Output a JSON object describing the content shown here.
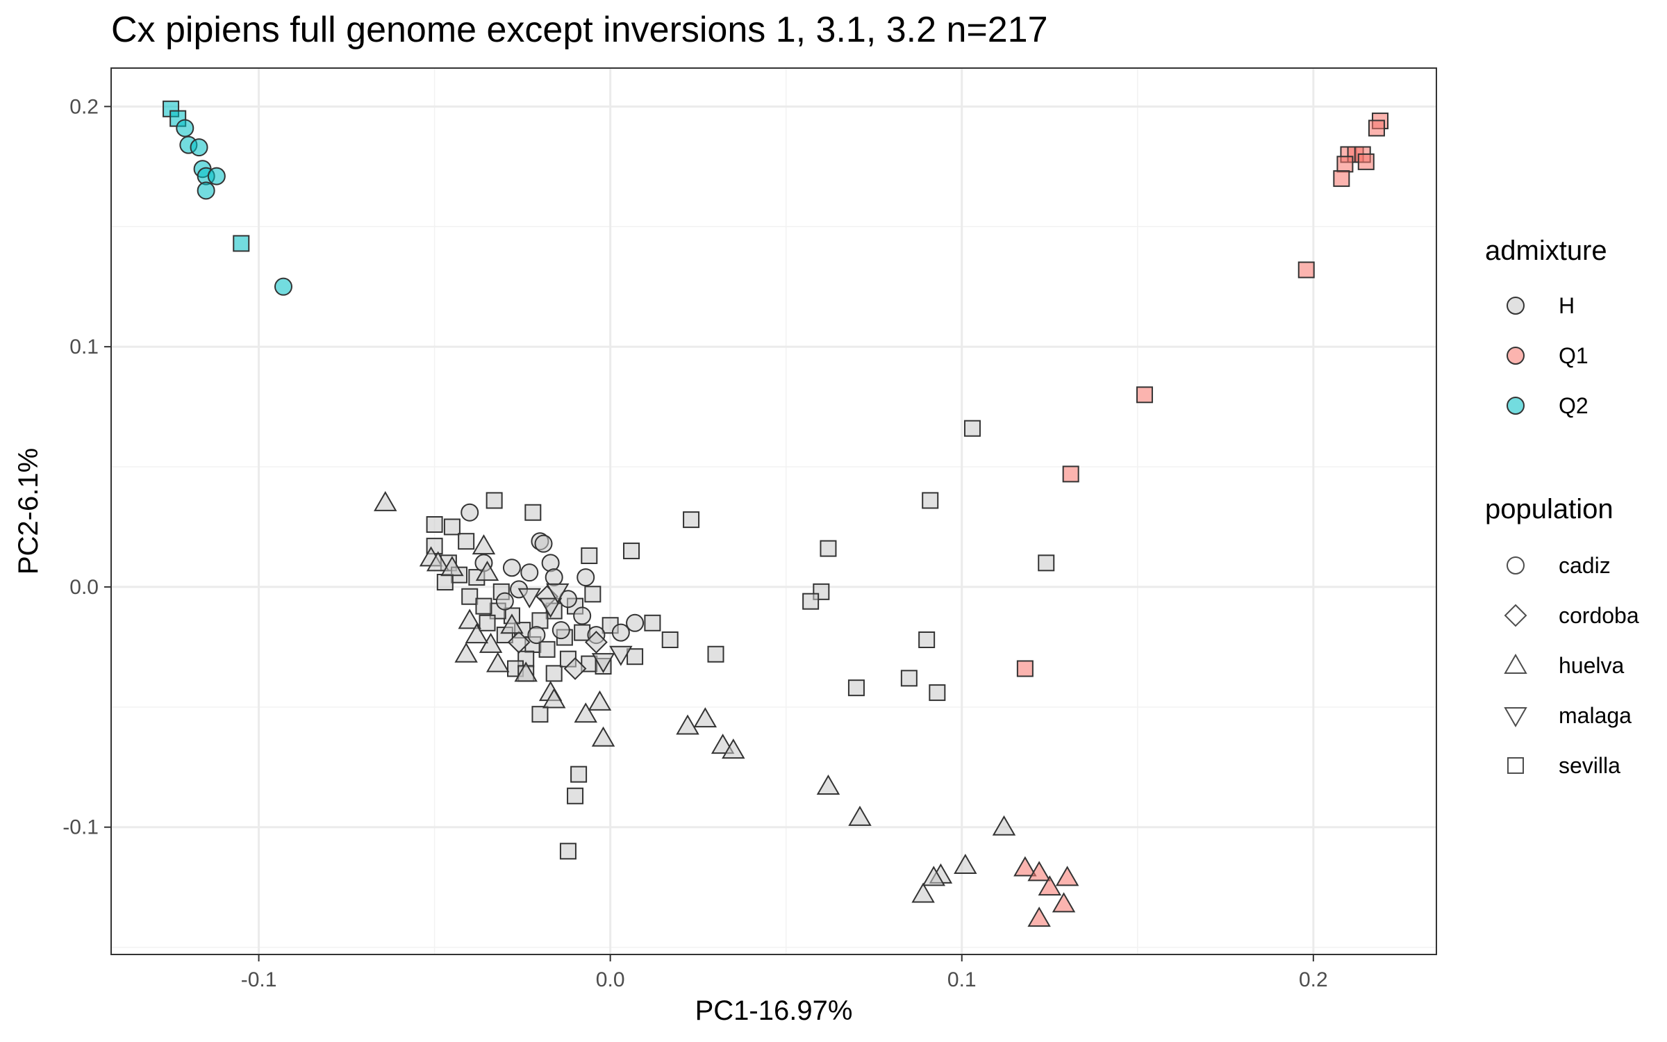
{
  "chart_data": {
    "type": "scatter",
    "title": "Cx pipiens full genome except inversions 1, 3.1, 3.2 n=217",
    "xlabel": "PC1-16.97%",
    "ylabel": "PC2-6.1%",
    "xlim": [
      -0.142,
      0.235
    ],
    "ylim": [
      -0.153,
      0.216
    ],
    "x_ticks": [
      -0.1,
      0.0,
      0.1,
      0.2
    ],
    "x_tick_labels": [
      "-0.1",
      "0.0",
      "0.1",
      "0.2"
    ],
    "y_ticks": [
      -0.1,
      0.0,
      0.1,
      0.2
    ],
    "y_tick_labels": [
      "-0.1",
      "0.0",
      "0.1",
      "0.2"
    ],
    "grid": true,
    "legend_position": "right",
    "colors": {
      "H": "#c8c8c8",
      "Q1": "#f8766d",
      "Q2": "#00bfc4"
    },
    "legend_admixture": {
      "title": "admixture",
      "items": [
        "H",
        "Q1",
        "Q2"
      ]
    },
    "legend_population": {
      "title": "population",
      "items": [
        "cadiz",
        "cordoba",
        "huelva",
        "malaga",
        "sevilla"
      ]
    },
    "points": [
      {
        "x": -0.125,
        "y": 0.199,
        "admixture": "Q2",
        "population": "sevilla"
      },
      {
        "x": -0.123,
        "y": 0.195,
        "admixture": "Q2",
        "population": "sevilla"
      },
      {
        "x": -0.121,
        "y": 0.191,
        "admixture": "Q2",
        "population": "cadiz"
      },
      {
        "x": -0.12,
        "y": 0.184,
        "admixture": "Q2",
        "population": "cadiz"
      },
      {
        "x": -0.117,
        "y": 0.183,
        "admixture": "Q2",
        "population": "cadiz"
      },
      {
        "x": -0.116,
        "y": 0.174,
        "admixture": "Q2",
        "population": "cadiz"
      },
      {
        "x": -0.115,
        "y": 0.171,
        "admixture": "Q2",
        "population": "cadiz"
      },
      {
        "x": -0.112,
        "y": 0.171,
        "admixture": "Q2",
        "population": "cadiz"
      },
      {
        "x": -0.115,
        "y": 0.165,
        "admixture": "Q2",
        "population": "cadiz"
      },
      {
        "x": -0.105,
        "y": 0.143,
        "admixture": "Q2",
        "population": "sevilla"
      },
      {
        "x": -0.093,
        "y": 0.125,
        "admixture": "Q2",
        "population": "cadiz"
      },
      {
        "x": 0.219,
        "y": 0.194,
        "admixture": "Q1",
        "population": "sevilla"
      },
      {
        "x": 0.218,
        "y": 0.191,
        "admixture": "Q1",
        "population": "sevilla"
      },
      {
        "x": 0.21,
        "y": 0.18,
        "admixture": "Q1",
        "population": "sevilla"
      },
      {
        "x": 0.212,
        "y": 0.18,
        "admixture": "Q1",
        "population": "sevilla"
      },
      {
        "x": 0.214,
        "y": 0.18,
        "admixture": "Q1",
        "population": "sevilla"
      },
      {
        "x": 0.209,
        "y": 0.176,
        "admixture": "Q1",
        "population": "sevilla"
      },
      {
        "x": 0.215,
        "y": 0.177,
        "admixture": "Q1",
        "population": "sevilla"
      },
      {
        "x": 0.208,
        "y": 0.17,
        "admixture": "Q1",
        "population": "sevilla"
      },
      {
        "x": 0.198,
        "y": 0.132,
        "admixture": "Q1",
        "population": "sevilla"
      },
      {
        "x": 0.152,
        "y": 0.08,
        "admixture": "Q1",
        "population": "sevilla"
      },
      {
        "x": 0.131,
        "y": 0.047,
        "admixture": "Q1",
        "population": "sevilla"
      },
      {
        "x": 0.118,
        "y": -0.034,
        "admixture": "Q1",
        "population": "sevilla"
      },
      {
        "x": 0.118,
        "y": -0.117,
        "admixture": "Q1",
        "population": "huelva"
      },
      {
        "x": 0.122,
        "y": -0.119,
        "admixture": "Q1",
        "population": "huelva"
      },
      {
        "x": 0.125,
        "y": -0.125,
        "admixture": "Q1",
        "population": "huelva"
      },
      {
        "x": 0.13,
        "y": -0.121,
        "admixture": "Q1",
        "population": "huelva"
      },
      {
        "x": 0.129,
        "y": -0.132,
        "admixture": "Q1",
        "population": "huelva"
      },
      {
        "x": 0.122,
        "y": -0.138,
        "admixture": "Q1",
        "population": "huelva"
      },
      {
        "x": 0.103,
        "y": 0.066,
        "admixture": "H",
        "population": "sevilla"
      },
      {
        "x": 0.091,
        "y": 0.036,
        "admixture": "H",
        "population": "sevilla"
      },
      {
        "x": 0.124,
        "y": 0.01,
        "admixture": "H",
        "population": "sevilla"
      },
      {
        "x": 0.062,
        "y": 0.016,
        "admixture": "H",
        "population": "sevilla"
      },
      {
        "x": 0.06,
        "y": -0.002,
        "admixture": "H",
        "population": "sevilla"
      },
      {
        "x": 0.057,
        "y": -0.006,
        "admixture": "H",
        "population": "sevilla"
      },
      {
        "x": 0.09,
        "y": -0.022,
        "admixture": "H",
        "population": "sevilla"
      },
      {
        "x": 0.085,
        "y": -0.038,
        "admixture": "H",
        "population": "sevilla"
      },
      {
        "x": 0.093,
        "y": -0.044,
        "admixture": "H",
        "population": "sevilla"
      },
      {
        "x": 0.07,
        "y": -0.042,
        "admixture": "H",
        "population": "sevilla"
      },
      {
        "x": 0.023,
        "y": 0.028,
        "admixture": "H",
        "population": "sevilla"
      },
      {
        "x": 0.006,
        "y": 0.015,
        "admixture": "H",
        "population": "sevilla"
      },
      {
        "x": 0.012,
        "y": -0.015,
        "admixture": "H",
        "population": "sevilla"
      },
      {
        "x": 0.017,
        "y": -0.022,
        "admixture": "H",
        "population": "sevilla"
      },
      {
        "x": 0.03,
        "y": -0.028,
        "admixture": "H",
        "population": "sevilla"
      },
      {
        "x": 0.007,
        "y": -0.029,
        "admixture": "H",
        "population": "sevilla"
      },
      {
        "x": -0.009,
        "y": -0.078,
        "admixture": "H",
        "population": "sevilla"
      },
      {
        "x": -0.01,
        "y": -0.087,
        "admixture": "H",
        "population": "sevilla"
      },
      {
        "x": -0.012,
        "y": -0.11,
        "admixture": "H",
        "population": "sevilla"
      },
      {
        "x": -0.02,
        "y": -0.053,
        "admixture": "H",
        "population": "sevilla"
      },
      {
        "x": -0.022,
        "y": 0.031,
        "admixture": "H",
        "population": "sevilla"
      },
      {
        "x": -0.033,
        "y": 0.036,
        "admixture": "H",
        "population": "sevilla"
      },
      {
        "x": -0.05,
        "y": 0.026,
        "admixture": "H",
        "population": "sevilla"
      },
      {
        "x": -0.045,
        "y": 0.025,
        "admixture": "H",
        "population": "sevilla"
      },
      {
        "x": -0.05,
        "y": 0.017,
        "admixture": "H",
        "population": "sevilla"
      },
      {
        "x": -0.041,
        "y": 0.019,
        "admixture": "H",
        "population": "sevilla"
      },
      {
        "x": -0.046,
        "y": 0.01,
        "admixture": "H",
        "population": "sevilla"
      },
      {
        "x": -0.043,
        "y": 0.005,
        "admixture": "H",
        "population": "sevilla"
      },
      {
        "x": -0.047,
        "y": 0.002,
        "admixture": "H",
        "population": "sevilla"
      },
      {
        "x": -0.006,
        "y": 0.013,
        "admixture": "H",
        "population": "sevilla"
      },
      {
        "x": -0.005,
        "y": -0.003,
        "admixture": "H",
        "population": "sevilla"
      },
      {
        "x": -0.01,
        "y": -0.008,
        "admixture": "H",
        "population": "sevilla"
      },
      {
        "x": -0.016,
        "y": -0.01,
        "admixture": "H",
        "population": "sevilla"
      },
      {
        "x": -0.02,
        "y": -0.014,
        "admixture": "H",
        "population": "sevilla"
      },
      {
        "x": -0.025,
        "y": -0.018,
        "admixture": "H",
        "population": "sevilla"
      },
      {
        "x": -0.028,
        "y": -0.012,
        "admixture": "H",
        "population": "sevilla"
      },
      {
        "x": -0.032,
        "y": -0.01,
        "admixture": "H",
        "population": "sevilla"
      },
      {
        "x": -0.035,
        "y": -0.015,
        "admixture": "H",
        "population": "sevilla"
      },
      {
        "x": -0.03,
        "y": -0.02,
        "admixture": "H",
        "population": "sevilla"
      },
      {
        "x": -0.022,
        "y": -0.024,
        "admixture": "H",
        "population": "sevilla"
      },
      {
        "x": -0.018,
        "y": -0.026,
        "admixture": "H",
        "population": "sevilla"
      },
      {
        "x": -0.024,
        "y": -0.03,
        "admixture": "H",
        "population": "sevilla"
      },
      {
        "x": -0.027,
        "y": -0.034,
        "admixture": "H",
        "population": "sevilla"
      },
      {
        "x": -0.024,
        "y": -0.036,
        "admixture": "H",
        "population": "sevilla"
      },
      {
        "x": -0.016,
        "y": -0.036,
        "admixture": "H",
        "population": "sevilla"
      },
      {
        "x": -0.012,
        "y": -0.03,
        "admixture": "H",
        "population": "sevilla"
      },
      {
        "x": -0.006,
        "y": -0.032,
        "admixture": "H",
        "population": "sevilla"
      },
      {
        "x": -0.002,
        "y": -0.033,
        "admixture": "H",
        "population": "sevilla"
      },
      {
        "x": 0.0,
        "y": -0.016,
        "admixture": "H",
        "population": "sevilla"
      },
      {
        "x": -0.038,
        "y": 0.004,
        "admixture": "H",
        "population": "sevilla"
      },
      {
        "x": -0.04,
        "y": -0.004,
        "admixture": "H",
        "population": "sevilla"
      },
      {
        "x": -0.036,
        "y": -0.008,
        "admixture": "H",
        "population": "sevilla"
      },
      {
        "x": -0.031,
        "y": -0.002,
        "admixture": "H",
        "population": "sevilla"
      },
      {
        "x": -0.013,
        "y": -0.021,
        "admixture": "H",
        "population": "sevilla"
      },
      {
        "x": -0.008,
        "y": -0.019,
        "admixture": "H",
        "population": "sevilla"
      },
      {
        "x": -0.04,
        "y": 0.031,
        "admixture": "H",
        "population": "cadiz"
      },
      {
        "x": -0.02,
        "y": 0.019,
        "admixture": "H",
        "population": "cadiz"
      },
      {
        "x": -0.019,
        "y": 0.018,
        "admixture": "H",
        "population": "cadiz"
      },
      {
        "x": -0.017,
        "y": 0.01,
        "admixture": "H",
        "population": "cadiz"
      },
      {
        "x": -0.028,
        "y": 0.008,
        "admixture": "H",
        "population": "cadiz"
      },
      {
        "x": -0.023,
        "y": 0.006,
        "admixture": "H",
        "population": "cadiz"
      },
      {
        "x": -0.007,
        "y": 0.004,
        "admixture": "H",
        "population": "cadiz"
      },
      {
        "x": -0.016,
        "y": 0.004,
        "admixture": "H",
        "population": "cadiz"
      },
      {
        "x": -0.036,
        "y": 0.01,
        "admixture": "H",
        "population": "cadiz"
      },
      {
        "x": -0.026,
        "y": -0.001,
        "admixture": "H",
        "population": "cadiz"
      },
      {
        "x": -0.012,
        "y": -0.005,
        "admixture": "H",
        "population": "cadiz"
      },
      {
        "x": -0.008,
        "y": -0.012,
        "admixture": "H",
        "population": "cadiz"
      },
      {
        "x": -0.004,
        "y": -0.02,
        "admixture": "H",
        "population": "cadiz"
      },
      {
        "x": 0.003,
        "y": -0.019,
        "admixture": "H",
        "population": "cadiz"
      },
      {
        "x": 0.007,
        "y": -0.015,
        "admixture": "H",
        "population": "cadiz"
      },
      {
        "x": -0.014,
        "y": -0.018,
        "admixture": "H",
        "population": "cadiz"
      },
      {
        "x": -0.021,
        "y": -0.02,
        "admixture": "H",
        "population": "cadiz"
      },
      {
        "x": -0.03,
        "y": -0.006,
        "admixture": "H",
        "population": "cadiz"
      },
      {
        "x": -0.01,
        "y": -0.034,
        "admixture": "H",
        "population": "cordoba"
      },
      {
        "x": -0.018,
        "y": -0.004,
        "admixture": "H",
        "population": "cordoba"
      },
      {
        "x": -0.004,
        "y": -0.023,
        "admixture": "H",
        "population": "cordoba"
      },
      {
        "x": -0.026,
        "y": -0.023,
        "admixture": "H",
        "population": "cordoba"
      },
      {
        "x": -0.023,
        "y": -0.004,
        "admixture": "H",
        "population": "malaga"
      },
      {
        "x": -0.017,
        "y": -0.008,
        "admixture": "H",
        "population": "malaga"
      },
      {
        "x": 0.003,
        "y": -0.028,
        "admixture": "H",
        "population": "malaga"
      },
      {
        "x": -0.002,
        "y": -0.031,
        "admixture": "H",
        "population": "malaga"
      },
      {
        "x": -0.015,
        "y": -0.002,
        "admixture": "H",
        "population": "malaga"
      },
      {
        "x": -0.064,
        "y": 0.035,
        "admixture": "H",
        "population": "huelva"
      },
      {
        "x": -0.051,
        "y": 0.012,
        "admixture": "H",
        "population": "huelva"
      },
      {
        "x": -0.049,
        "y": 0.01,
        "admixture": "H",
        "population": "huelva"
      },
      {
        "x": -0.045,
        "y": 0.008,
        "admixture": "H",
        "population": "huelva"
      },
      {
        "x": -0.036,
        "y": 0.017,
        "admixture": "H",
        "population": "huelva"
      },
      {
        "x": -0.035,
        "y": 0.006,
        "admixture": "H",
        "population": "huelva"
      },
      {
        "x": -0.04,
        "y": -0.014,
        "admixture": "H",
        "population": "huelva"
      },
      {
        "x": -0.041,
        "y": -0.028,
        "admixture": "H",
        "population": "huelva"
      },
      {
        "x": -0.034,
        "y": -0.024,
        "admixture": "H",
        "population": "huelva"
      },
      {
        "x": -0.032,
        "y": -0.032,
        "admixture": "H",
        "population": "huelva"
      },
      {
        "x": -0.024,
        "y": -0.036,
        "admixture": "H",
        "population": "huelva"
      },
      {
        "x": -0.017,
        "y": -0.044,
        "admixture": "H",
        "population": "huelva"
      },
      {
        "x": -0.016,
        "y": -0.047,
        "admixture": "H",
        "population": "huelva"
      },
      {
        "x": -0.007,
        "y": -0.053,
        "admixture": "H",
        "population": "huelva"
      },
      {
        "x": -0.003,
        "y": -0.048,
        "admixture": "H",
        "population": "huelva"
      },
      {
        "x": -0.002,
        "y": -0.063,
        "admixture": "H",
        "population": "huelva"
      },
      {
        "x": 0.022,
        "y": -0.058,
        "admixture": "H",
        "population": "huelva"
      },
      {
        "x": 0.027,
        "y": -0.055,
        "admixture": "H",
        "population": "huelva"
      },
      {
        "x": 0.032,
        "y": -0.066,
        "admixture": "H",
        "population": "huelva"
      },
      {
        "x": 0.035,
        "y": -0.068,
        "admixture": "H",
        "population": "huelva"
      },
      {
        "x": 0.062,
        "y": -0.083,
        "admixture": "H",
        "population": "huelva"
      },
      {
        "x": 0.071,
        "y": -0.096,
        "admixture": "H",
        "population": "huelva"
      },
      {
        "x": 0.112,
        "y": -0.1,
        "admixture": "H",
        "population": "huelva"
      },
      {
        "x": 0.101,
        "y": -0.116,
        "admixture": "H",
        "population": "huelva"
      },
      {
        "x": 0.094,
        "y": -0.12,
        "admixture": "H",
        "population": "huelva"
      },
      {
        "x": 0.092,
        "y": -0.121,
        "admixture": "H",
        "population": "huelva"
      },
      {
        "x": 0.089,
        "y": -0.128,
        "admixture": "H",
        "population": "huelva"
      },
      {
        "x": -0.028,
        "y": -0.016,
        "admixture": "H",
        "population": "huelva"
      },
      {
        "x": -0.038,
        "y": -0.02,
        "admixture": "H",
        "population": "huelva"
      }
    ]
  }
}
